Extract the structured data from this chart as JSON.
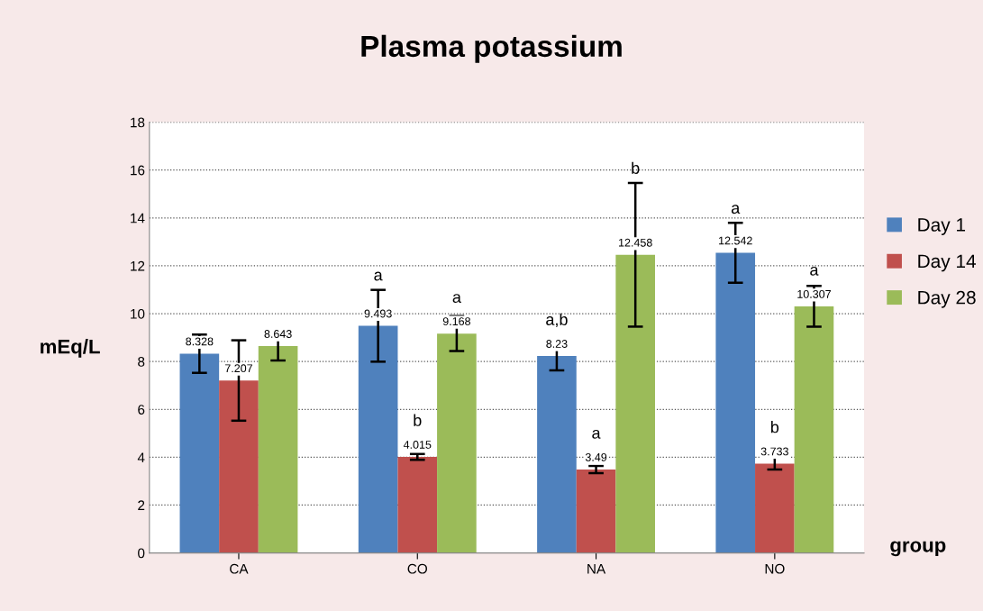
{
  "chart_data": {
    "type": "bar",
    "title": "Plasma potassium",
    "xlabel": "group",
    "ylabel": "mEq/L",
    "categories": [
      "CA",
      "CO",
      "NA",
      "NO"
    ],
    "series": [
      {
        "name": "Day 1",
        "color": "#4f81bd",
        "values": [
          8.328,
          9.493,
          8.23,
          12.542
        ],
        "errors": [
          0.8,
          1.5,
          0.6,
          1.25
        ]
      },
      {
        "name": "Day 14",
        "color": "#c0504d",
        "values": [
          7.207,
          4.015,
          3.49,
          3.733
        ],
        "errors": [
          1.68,
          0.12,
          0.15,
          0.25
        ]
      },
      {
        "name": "Day 28",
        "color": "#9bbb59",
        "values": [
          8.643,
          9.168,
          12.458,
          10.307
        ],
        "errors": [
          0.6,
          0.73,
          3.0,
          0.85
        ]
      }
    ],
    "annotations": [
      "a",
      "b",
      "a",
      "a,b",
      "a",
      "b",
      "a",
      "b",
      "a"
    ],
    "ylim": [
      0,
      18
    ],
    "yticks": [
      0,
      2,
      4,
      6,
      8,
      10,
      12,
      14,
      16,
      18
    ],
    "grid": "y",
    "legend": "right",
    "data_labels": true
  }
}
